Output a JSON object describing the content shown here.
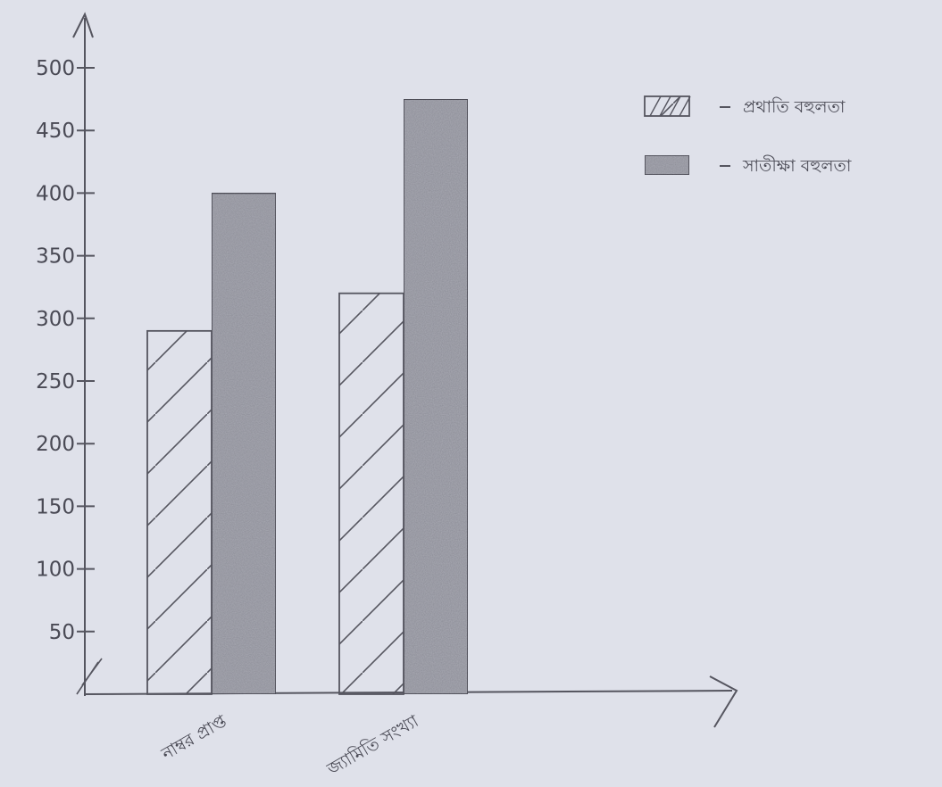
{
  "chart_data": {
    "type": "bar",
    "title": "",
    "xlabel": "",
    "ylabel": "",
    "categories": [
      "নাম্বর প্রাপ্ত",
      "জ্যামিতি সংখ্যা"
    ],
    "series": [
      {
        "name": "প্রথাতি বহুলতা",
        "values": [
          290,
          320
        ],
        "pattern": "hatch"
      },
      {
        "name": "সাতীক্ষা বহুলতা",
        "values": [
          400,
          475
        ],
        "pattern": "solid-shaded"
      }
    ],
    "yticks": [
      50,
      100,
      150,
      200,
      250,
      300,
      350,
      400,
      450,
      500
    ],
    "ytick_labels": [
      "50",
      "100",
      "150",
      "200",
      "250",
      "300",
      "350",
      "400",
      "450",
      "500"
    ],
    "ylim": [
      0,
      500
    ],
    "grid": false,
    "legend": "top-right",
    "colors": {
      "background": "#dfe1ea",
      "ink": "#55555f",
      "shade": "#a9aab3"
    }
  }
}
